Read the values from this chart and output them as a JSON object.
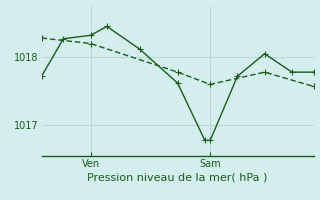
{
  "title": "Pression niveau de la mer( hPa )",
  "background_color": "#d4eeee",
  "grid_color": "#b8d8d8",
  "line_color": "#1a5c1a",
  "ylim": [
    1016.55,
    1018.75
  ],
  "yticks": [
    1017.0,
    1018.0
  ],
  "xlim": [
    0,
    10
  ],
  "x_ven_pos": 1.8,
  "x_sam_pos": 6.2,
  "series1_x": [
    0.0,
    0.8,
    1.8,
    2.4,
    3.6,
    5.0,
    6.0,
    6.2,
    7.2,
    8.2,
    9.2,
    10.0
  ],
  "series1_y": [
    1017.72,
    1018.27,
    1018.32,
    1018.45,
    1018.12,
    1017.62,
    1016.78,
    1016.78,
    1017.72,
    1018.05,
    1017.78,
    1017.78
  ],
  "series2_x": [
    0.0,
    1.8,
    5.0,
    6.2,
    8.2,
    10.0
  ],
  "series2_y": [
    1018.28,
    1018.2,
    1017.78,
    1017.6,
    1017.78,
    1017.57
  ],
  "marker_size": 4,
  "line_width": 1.0,
  "tick_fontsize": 7,
  "label_fontsize": 8
}
